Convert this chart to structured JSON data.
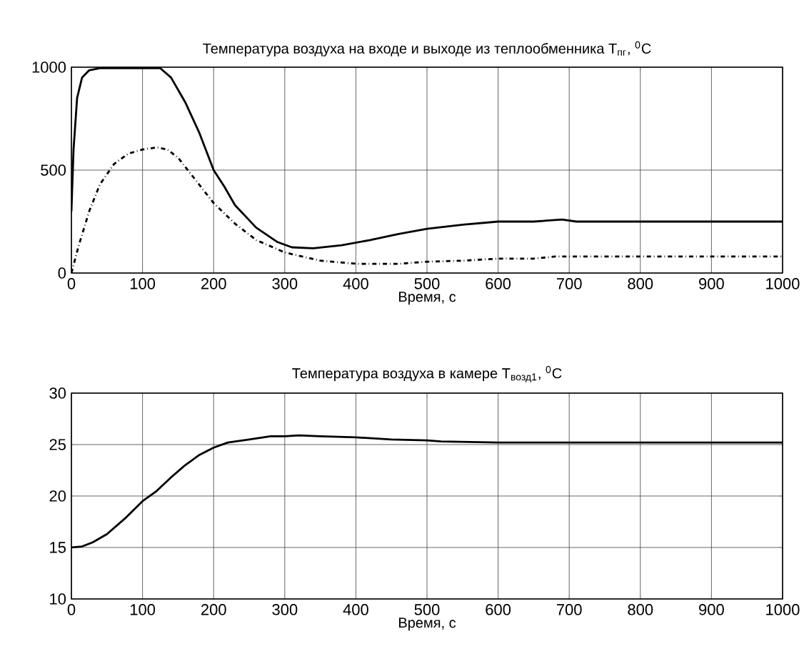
{
  "chart_data": [
    {
      "type": "line",
      "title": "Температура воздуха на входе и выходе из теплообменника T$_{пг}$, $^{0}$C",
      "xlabel": "Время, с",
      "xlim": [
        0,
        1000
      ],
      "ylim": [
        0,
        1000
      ],
      "xticks": [
        0,
        100,
        200,
        300,
        400,
        500,
        600,
        700,
        800,
        900,
        1000
      ],
      "yticks": [
        0,
        500,
        1000
      ],
      "grid": true,
      "series": [
        {
          "color": "#000000",
          "line_style": "solid",
          "x": [
            0,
            3,
            8,
            15,
            25,
            40,
            100,
            125,
            140,
            160,
            180,
            200,
            215,
            230,
            260,
            290,
            310,
            340,
            380,
            420,
            460,
            500,
            550,
            600,
            650,
            690,
            710,
            1000
          ],
          "values": [
            300,
            600,
            850,
            950,
            985,
            995,
            995,
            995,
            950,
            830,
            680,
            500,
            420,
            330,
            220,
            150,
            125,
            120,
            135,
            160,
            190,
            215,
            235,
            250,
            250,
            260,
            250,
            250
          ]
        },
        {
          "color": "#000000",
          "line_style": "dashdot",
          "x": [
            0,
            10,
            25,
            40,
            60,
            80,
            100,
            120,
            135,
            150,
            175,
            200,
            230,
            260,
            300,
            350,
            400,
            460,
            500,
            550,
            600,
            650,
            680,
            1000
          ],
          "values": [
            0,
            130,
            300,
            430,
            530,
            580,
            600,
            610,
            600,
            560,
            450,
            340,
            240,
            160,
            100,
            60,
            45,
            45,
            55,
            60,
            70,
            70,
            80,
            80
          ]
        }
      ]
    },
    {
      "type": "line",
      "title": "Температура воздуха в камере T$_{возд1}$, $^{0}$C",
      "xlabel": "Время, с",
      "xlim": [
        0,
        1000
      ],
      "ylim": [
        10,
        30
      ],
      "xticks": [
        0,
        100,
        200,
        300,
        400,
        500,
        600,
        700,
        800,
        900,
        1000
      ],
      "yticks": [
        10,
        15,
        20,
        25,
        30
      ],
      "grid": true,
      "series": [
        {
          "color": "#000000",
          "line_style": "solid",
          "x": [
            0,
            15,
            30,
            50,
            75,
            100,
            120,
            140,
            160,
            180,
            200,
            220,
            250,
            280,
            300,
            320,
            350,
            400,
            450,
            500,
            520,
            600,
            1000
          ],
          "values": [
            15,
            15.1,
            15.5,
            16.3,
            17.8,
            19.5,
            20.5,
            21.8,
            23,
            24,
            24.7,
            25.2,
            25.5,
            25.8,
            25.8,
            25.9,
            25.8,
            25.7,
            25.5,
            25.4,
            25.3,
            25.2,
            25.2
          ]
        }
      ]
    }
  ]
}
